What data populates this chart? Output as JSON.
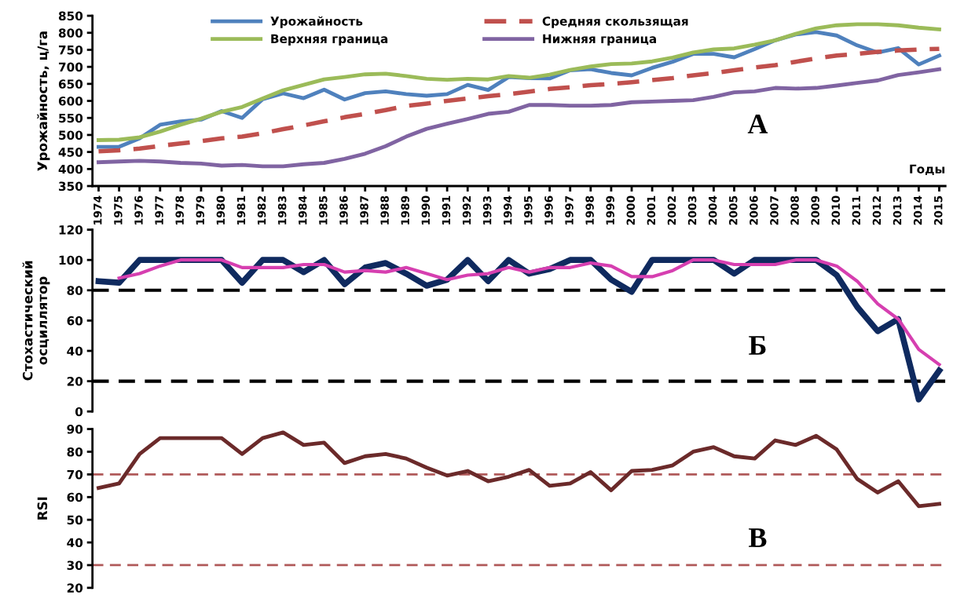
{
  "chart_data": [
    {
      "type": "line",
      "ylabel": "Урожайность, ц/га",
      "xlabel": "Годы",
      "annotations": [
        "А"
      ],
      "categories": [
        "1974",
        "1975",
        "1976",
        "1977",
        "1978",
        "1979",
        "1980",
        "1981",
        "1982",
        "1983",
        "1984",
        "1985",
        "1986",
        "1987",
        "1988",
        "1989",
        "1990",
        "1991",
        "1992",
        "1993",
        "1994",
        "1995",
        "1996",
        "1997",
        "1998",
        "1999",
        "2000",
        "2001",
        "2002",
        "2003",
        "2004",
        "2005",
        "2006",
        "2007",
        "2008",
        "2009",
        "2010",
        "2011",
        "2012",
        "2013",
        "2014",
        "2015"
      ],
      "ylim": [
        350,
        850
      ],
      "yticks": [
        350,
        400,
        450,
        500,
        550,
        600,
        650,
        700,
        750,
        800,
        850
      ],
      "grid": false,
      "legend": "top",
      "marker": "none",
      "series": [
        {
          "name": "Урожайность",
          "color": "#4f81bd",
          "line_style": "solid",
          "values": [
            465,
            465,
            490,
            530,
            540,
            545,
            570,
            550,
            605,
            622,
            608,
            633,
            604,
            623,
            628,
            620,
            615,
            620,
            647,
            632,
            670,
            667,
            666,
            690,
            693,
            682,
            675,
            697,
            715,
            738,
            738,
            728,
            752,
            778,
            795,
            802,
            792,
            763,
            742,
            755,
            707,
            733
          ]
        },
        {
          "name": "Средняя скользящая",
          "color": "#c0504d",
          "line_style": "dashed",
          "values": [
            452,
            455,
            460,
            468,
            475,
            482,
            490,
            495,
            505,
            517,
            528,
            540,
            552,
            562,
            573,
            585,
            592,
            600,
            607,
            614,
            620,
            627,
            635,
            640,
            646,
            650,
            655,
            661,
            667,
            675,
            682,
            690,
            698,
            705,
            715,
            725,
            733,
            738,
            744,
            748,
            751,
            753
          ]
        },
        {
          "name": "Верхняя граница",
          "color": "#9bbb59",
          "line_style": "solid",
          "values": [
            485,
            486,
            493,
            510,
            530,
            548,
            568,
            582,
            607,
            631,
            647,
            663,
            670,
            678,
            680,
            673,
            665,
            662,
            665,
            663,
            673,
            668,
            677,
            691,
            701,
            708,
            710,
            716,
            727,
            742,
            751,
            754,
            765,
            778,
            797,
            813,
            822,
            825,
            825,
            822,
            815,
            810
          ]
        },
        {
          "name": "Нижняя граница",
          "color": "#8064a2",
          "line_style": "solid",
          "values": [
            420,
            422,
            424,
            422,
            418,
            416,
            410,
            412,
            408,
            408,
            414,
            418,
            430,
            445,
            467,
            495,
            518,
            533,
            547,
            562,
            568,
            588,
            588,
            586,
            586,
            588,
            596,
            598,
            600,
            602,
            612,
            625,
            628,
            638,
            636,
            638,
            645,
            653,
            660,
            676,
            684,
            693
          ]
        }
      ]
    },
    {
      "type": "line",
      "ylabel": "Стохастический\nосциллятор",
      "annotations": [
        "Б"
      ],
      "tick_labels": "y",
      "categories": [
        "1974",
        "1975",
        "1976",
        "1977",
        "1978",
        "1979",
        "1980",
        "1981",
        "1982",
        "1983",
        "1984",
        "1985",
        "1986",
        "1987",
        "1988",
        "1989",
        "1990",
        "1991",
        "1992",
        "1993",
        "1994",
        "1995",
        "1996",
        "1997",
        "1998",
        "1999",
        "2000",
        "2001",
        "2002",
        "2003",
        "2004",
        "2005",
        "2006",
        "2007",
        "2008",
        "2009",
        "2010",
        "2011",
        "2012",
        "2013",
        "2014",
        "2015"
      ],
      "ylim": [
        0,
        120
      ],
      "yticks": [
        0,
        20,
        40,
        60,
        80,
        100,
        120
      ],
      "grid": false,
      "legend": false,
      "marker": "none",
      "ref_lines": [
        {
          "axis": "y",
          "value": 80,
          "label": null,
          "color": "#000000",
          "line_style": "dashed"
        },
        {
          "axis": "y",
          "value": 20,
          "label": null,
          "color": "#000000",
          "line_style": "dashed"
        }
      ],
      "series": [
        {
          "color": "#0f2a5f",
          "values": [
            86,
            85,
            100,
            100,
            100,
            100,
            100,
            85,
            100,
            100,
            92,
            100,
            84,
            95,
            98,
            91,
            83,
            87,
            100,
            86,
            100,
            91,
            94,
            100,
            100,
            87,
            79,
            100,
            100,
            100,
            100,
            91,
            100,
            100,
            100,
            100,
            90,
            69,
            53,
            61,
            8,
            27
          ]
        },
        {
          "color": "#d63fb0",
          "values": [
            null,
            88,
            91,
            96,
            100,
            100,
            100,
            95,
            95,
            95,
            97,
            97,
            92,
            93,
            92,
            95,
            91,
            87,
            90,
            91,
            95,
            92,
            95,
            95,
            98,
            96,
            89,
            89,
            93,
            100,
            100,
            97,
            97,
            97,
            100,
            100,
            96,
            86,
            71,
            61,
            41,
            31
          ]
        }
      ]
    },
    {
      "type": "line",
      "ylabel": "RSI",
      "annotations": [
        "В"
      ],
      "tick_labels": "y",
      "categories": [
        "1974",
        "1975",
        "1976",
        "1977",
        "1978",
        "1979",
        "1980",
        "1981",
        "1982",
        "1983",
        "1984",
        "1985",
        "1986",
        "1987",
        "1988",
        "1989",
        "1990",
        "1991",
        "1992",
        "1993",
        "1994",
        "1995",
        "1996",
        "1997",
        "1998",
        "1999",
        "2000",
        "2001",
        "2002",
        "2003",
        "2004",
        "2005",
        "2006",
        "2007",
        "2008",
        "2009",
        "2010",
        "2011",
        "2012",
        "2013",
        "2014",
        "2015"
      ],
      "ylim": [
        20,
        90
      ],
      "yticks": [
        20,
        30,
        40,
        50,
        60,
        70,
        80,
        90
      ],
      "grid": false,
      "legend": false,
      "marker": "none",
      "ref_lines": [
        {
          "axis": "y",
          "value": 70,
          "label": null,
          "color": "#b05a5a",
          "line_style": "dashed"
        },
        {
          "axis": "y",
          "value": 30,
          "label": null,
          "color": "#b05a5a",
          "line_style": "dashed"
        }
      ],
      "series": [
        {
          "color": "#6b2a2a",
          "values": [
            64,
            66,
            79,
            86,
            86,
            86,
            86,
            79,
            86,
            88.5,
            83,
            84,
            75,
            78,
            79,
            77,
            73,
            69.5,
            71.5,
            67,
            69,
            72,
            65,
            66,
            71,
            63,
            71.5,
            72,
            74,
            80,
            82,
            78,
            77,
            85,
            83,
            87,
            81,
            68,
            62,
            67,
            56,
            57
          ]
        }
      ]
    }
  ]
}
